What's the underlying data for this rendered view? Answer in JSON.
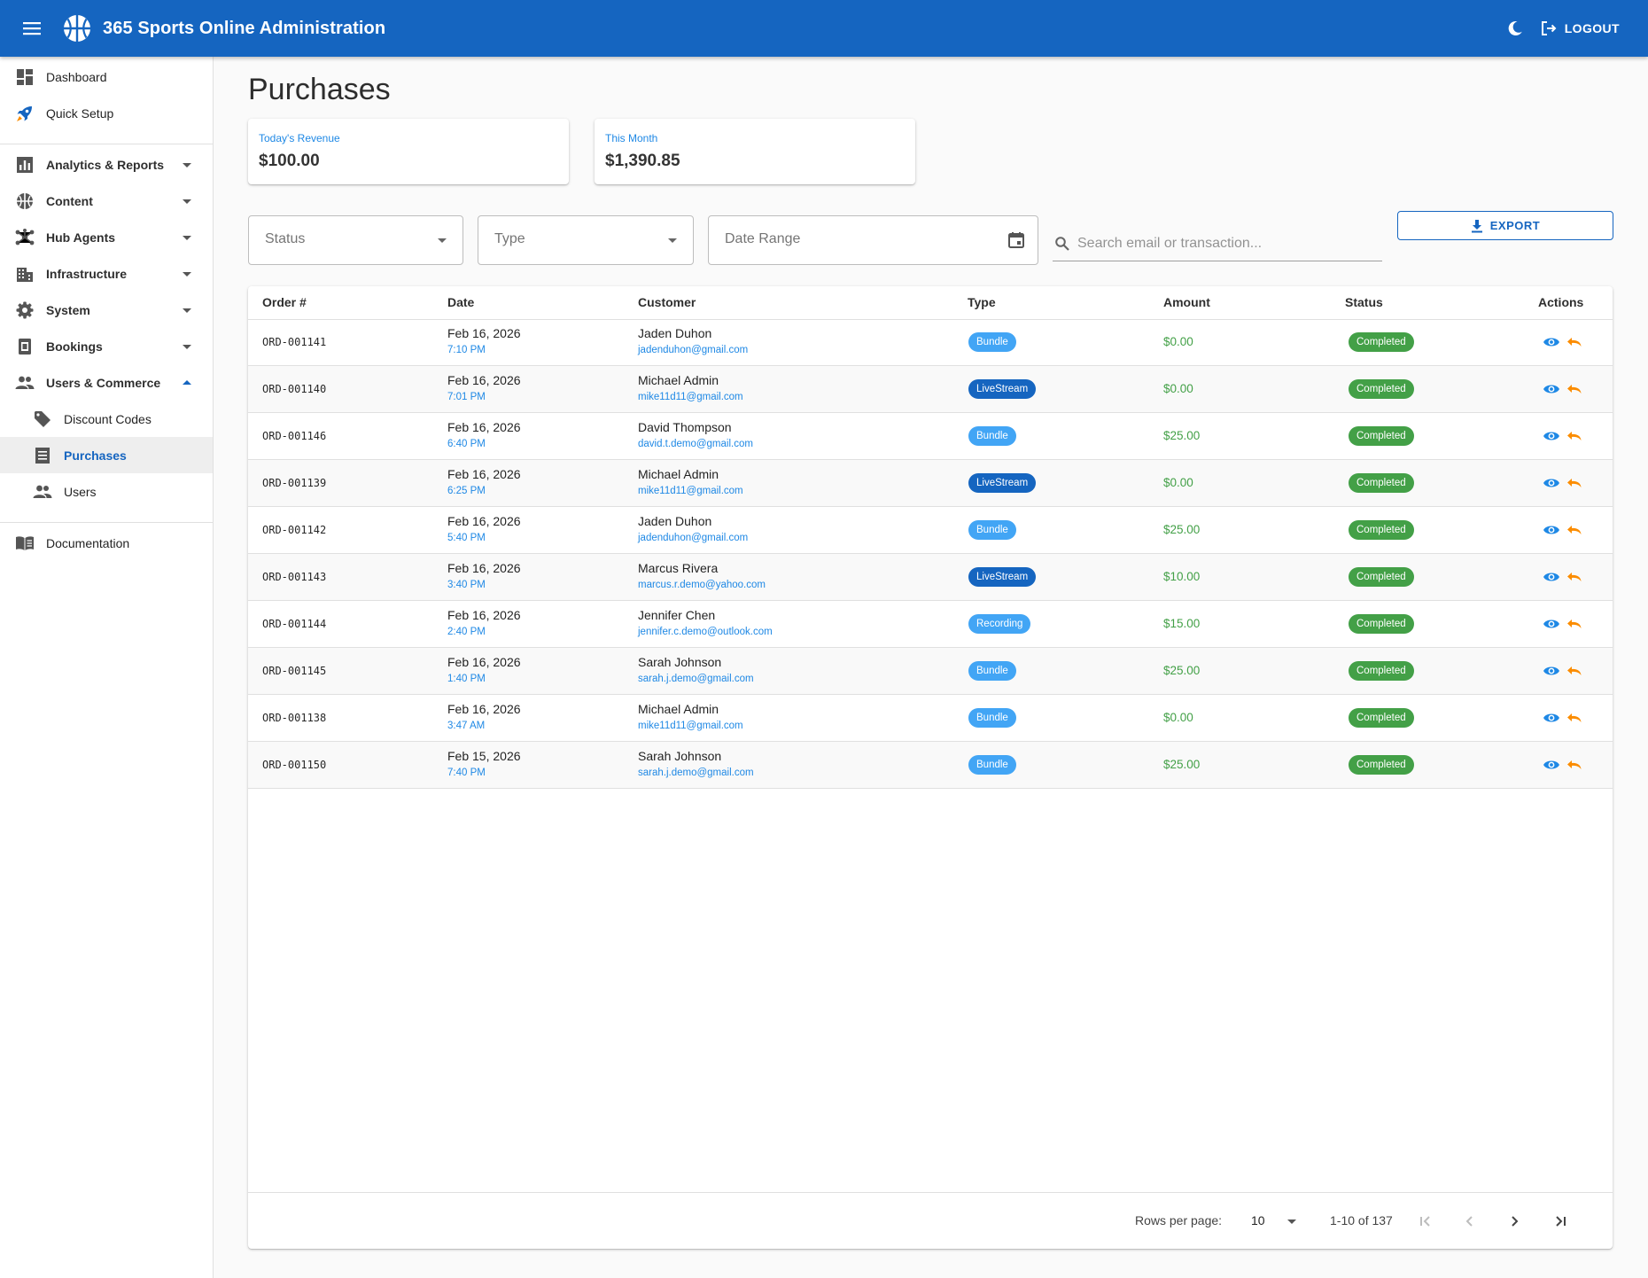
{
  "app": {
    "title": "365 Sports Online Administration",
    "logout_label": "LOGOUT",
    "brand_color": "#1565c0"
  },
  "sidebar": {
    "items": [
      {
        "label": "Dashboard",
        "icon": "dashboard-icon"
      },
      {
        "label": "Quick Setup",
        "icon": "rocket-icon"
      },
      {
        "label": "Analytics & Reports",
        "icon": "analytics-icon",
        "expandable": true
      },
      {
        "label": "Content",
        "icon": "content-icon",
        "expandable": true
      },
      {
        "label": "Hub Agents",
        "icon": "hub-icon",
        "expandable": true
      },
      {
        "label": "Infrastructure",
        "icon": "building-icon",
        "expandable": true
      },
      {
        "label": "System",
        "icon": "gear-icon",
        "expandable": true
      },
      {
        "label": "Bookings",
        "icon": "booking-icon",
        "expandable": true
      },
      {
        "label": "Users & Commerce",
        "icon": "people-icon",
        "expandable": true,
        "expanded": true
      },
      {
        "label": "Discount Codes",
        "icon": "tag-icon"
      },
      {
        "label": "Purchases",
        "icon": "receipt-icon",
        "active": true
      },
      {
        "label": "Users",
        "icon": "people-icon"
      },
      {
        "label": "Documentation",
        "icon": "book-icon"
      }
    ]
  },
  "page": {
    "title": "Purchases",
    "stats": [
      {
        "caption": "Today's Revenue",
        "value": "$100.00"
      },
      {
        "caption": "This Month",
        "value": "$1,390.85"
      }
    ]
  },
  "filters": {
    "status_placeholder": "Status",
    "type_placeholder": "Type",
    "date_placeholder": "Date Range",
    "search_placeholder": "Search email or transaction...",
    "export_label": "EXPORT"
  },
  "table": {
    "columns": [
      "Order #",
      "Date",
      "Customer",
      "Type",
      "Amount",
      "Status",
      "Actions"
    ],
    "rows": [
      {
        "order": "ORD-001141",
        "date": "Feb 16, 2026",
        "time": "7:10 PM",
        "name": "Jaden Duhon",
        "email": "jadenduhon@gmail.com",
        "type": "Bundle",
        "amount": "$0.00",
        "status": "Completed"
      },
      {
        "order": "ORD-001140",
        "date": "Feb 16, 2026",
        "time": "7:01 PM",
        "name": "Michael Admin",
        "email": "mike11d11@gmail.com",
        "type": "LiveStream",
        "amount": "$0.00",
        "status": "Completed"
      },
      {
        "order": "ORD-001146",
        "date": "Feb 16, 2026",
        "time": "6:40 PM",
        "name": "David Thompson",
        "email": "david.t.demo@gmail.com",
        "type": "Bundle",
        "amount": "$25.00",
        "status": "Completed"
      },
      {
        "order": "ORD-001139",
        "date": "Feb 16, 2026",
        "time": "6:25 PM",
        "name": "Michael Admin",
        "email": "mike11d11@gmail.com",
        "type": "LiveStream",
        "amount": "$0.00",
        "status": "Completed"
      },
      {
        "order": "ORD-001142",
        "date": "Feb 16, 2026",
        "time": "5:40 PM",
        "name": "Jaden Duhon",
        "email": "jadenduhon@gmail.com",
        "type": "Bundle",
        "amount": "$25.00",
        "status": "Completed"
      },
      {
        "order": "ORD-001143",
        "date": "Feb 16, 2026",
        "time": "3:40 PM",
        "name": "Marcus Rivera",
        "email": "marcus.r.demo@yahoo.com",
        "type": "LiveStream",
        "amount": "$10.00",
        "status": "Completed"
      },
      {
        "order": "ORD-001144",
        "date": "Feb 16, 2026",
        "time": "2:40 PM",
        "name": "Jennifer Chen",
        "email": "jennifer.c.demo@outlook.com",
        "type": "Recording",
        "amount": "$15.00",
        "status": "Completed"
      },
      {
        "order": "ORD-001145",
        "date": "Feb 16, 2026",
        "time": "1:40 PM",
        "name": "Sarah Johnson",
        "email": "sarah.j.demo@gmail.com",
        "type": "Bundle",
        "amount": "$25.00",
        "status": "Completed"
      },
      {
        "order": "ORD-001138",
        "date": "Feb 16, 2026",
        "time": "3:47 AM",
        "name": "Michael Admin",
        "email": "mike11d11@gmail.com",
        "type": "Bundle",
        "amount": "$0.00",
        "status": "Completed"
      },
      {
        "order": "ORD-001150",
        "date": "Feb 15, 2026",
        "time": "7:40 PM",
        "name": "Sarah Johnson",
        "email": "sarah.j.demo@gmail.com",
        "type": "Bundle",
        "amount": "$25.00",
        "status": "Completed"
      }
    ]
  },
  "pagination": {
    "rows_per_page_label": "Rows per page:",
    "rows_per_page": "10",
    "range": "1-10 of 137"
  }
}
